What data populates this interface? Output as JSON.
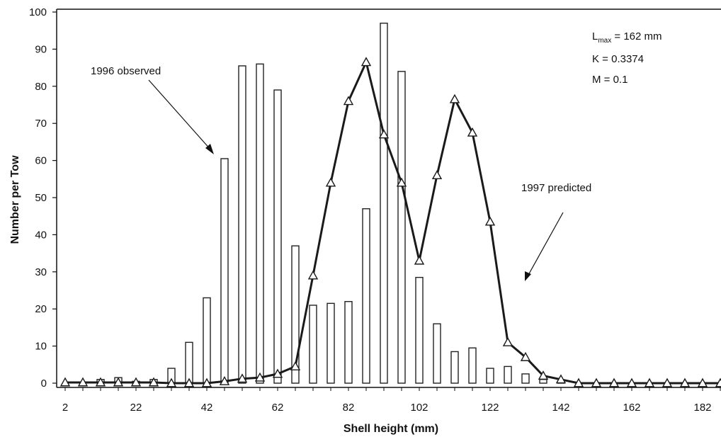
{
  "chart_data": {
    "type": "bar",
    "xlabel": "Shell height (mm)",
    "ylabel": "Number per Tow",
    "x_tick_labels": [
      "2",
      "22",
      "42",
      "62",
      "82",
      "102",
      "122",
      "142",
      "162",
      "182"
    ],
    "y_tick_labels": [
      "0",
      "10",
      "20",
      "30",
      "40",
      "50",
      "60",
      "70",
      "80",
      "90",
      "100"
    ],
    "xlim": [
      2,
      187
    ],
    "ylim": [
      0,
      100
    ],
    "grid": false,
    "x": [
      2,
      7,
      12,
      17,
      22,
      27,
      32,
      37,
      42,
      47,
      52,
      57,
      62,
      67,
      72,
      77,
      82,
      87,
      92,
      97,
      102,
      107,
      112,
      117,
      122,
      127,
      132,
      137,
      142,
      147,
      152,
      157,
      162,
      167,
      172,
      177,
      182,
      187
    ],
    "series": [
      {
        "name": "1996 observed",
        "type": "bar",
        "values": [
          0,
          0,
          1,
          1.5,
          0.5,
          1,
          4,
          11,
          23,
          60.5,
          85.5,
          86,
          79,
          37,
          21,
          21.5,
          22,
          47,
          97,
          84,
          28.5,
          16,
          8.5,
          9.5,
          4,
          4.5,
          2.5,
          1,
          0.5,
          0,
          0,
          0,
          0,
          0,
          0,
          0,
          0,
          0
        ]
      },
      {
        "name": "1997 predicted",
        "type": "line",
        "values": [
          0.2,
          0.2,
          0.2,
          0.2,
          0.2,
          0.2,
          0,
          0,
          0,
          0.5,
          1.2,
          1.5,
          2.5,
          4.5,
          29,
          54,
          76,
          86.5,
          67,
          54,
          33,
          56,
          76.5,
          67.5,
          43.5,
          11,
          7,
          2,
          1,
          0,
          0,
          0,
          0,
          0,
          0,
          0,
          0,
          0
        ]
      }
    ],
    "annotations": {
      "lmax_prefix": "L",
      "lmax_sub": "max",
      "lmax_value": " = 162 mm",
      "k": "K = 0.3374",
      "m": "M = 0.1"
    },
    "colors": {
      "line": "#1a1a1a",
      "bar_stroke": "#222222",
      "bar_fill": "#ffffff"
    }
  }
}
